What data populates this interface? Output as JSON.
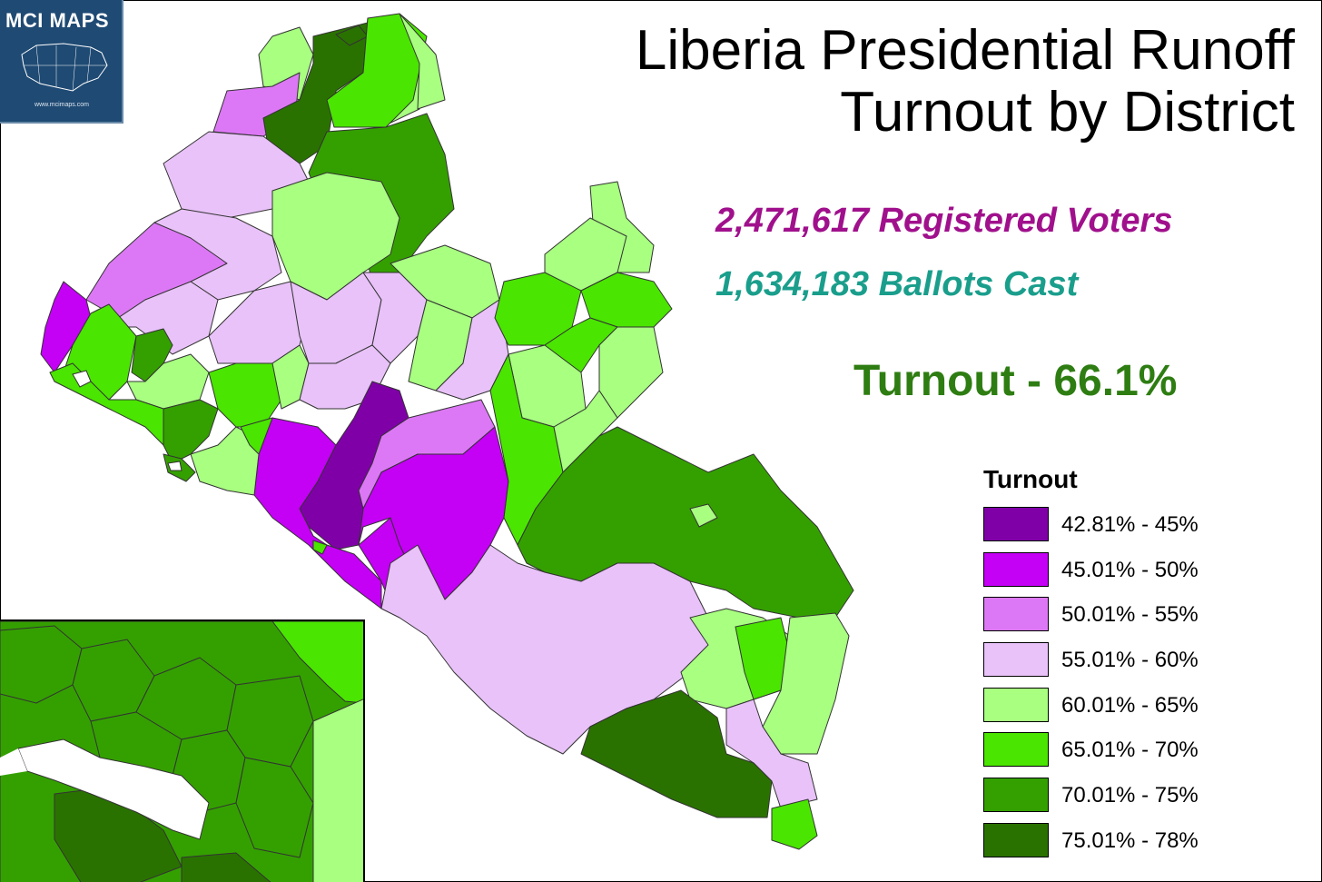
{
  "logo": {
    "text": "MCI MAPS",
    "url": "www.mcimaps.com"
  },
  "title": {
    "line1": "Liberia Presidential Runoff",
    "line2": "Turnout by District"
  },
  "stats": {
    "registered": "2,471,617 Registered Voters",
    "ballots": "1,634,183 Ballots Cast",
    "turnout": "Turnout - 66.1%"
  },
  "legend": {
    "title": "Turnout",
    "items": [
      {
        "label": "42.81% - 45%",
        "color": "#8000a8"
      },
      {
        "label": "45.01% - 50%",
        "color": "#c400f5"
      },
      {
        "label": "50.01% - 55%",
        "color": "#dc78f5"
      },
      {
        "label": "55.01% - 60%",
        "color": "#e8c2f8"
      },
      {
        "label": "60.01% - 65%",
        "color": "#a8ff80"
      },
      {
        "label": "65.01% - 70%",
        "color": "#4ae500"
      },
      {
        "label": "70.01% - 75%",
        "color": "#34a000"
      },
      {
        "label": "75.01% - 78%",
        "color": "#2a7200"
      }
    ]
  },
  "colors": {
    "outline": "#333333",
    "background": "#ffffff"
  }
}
